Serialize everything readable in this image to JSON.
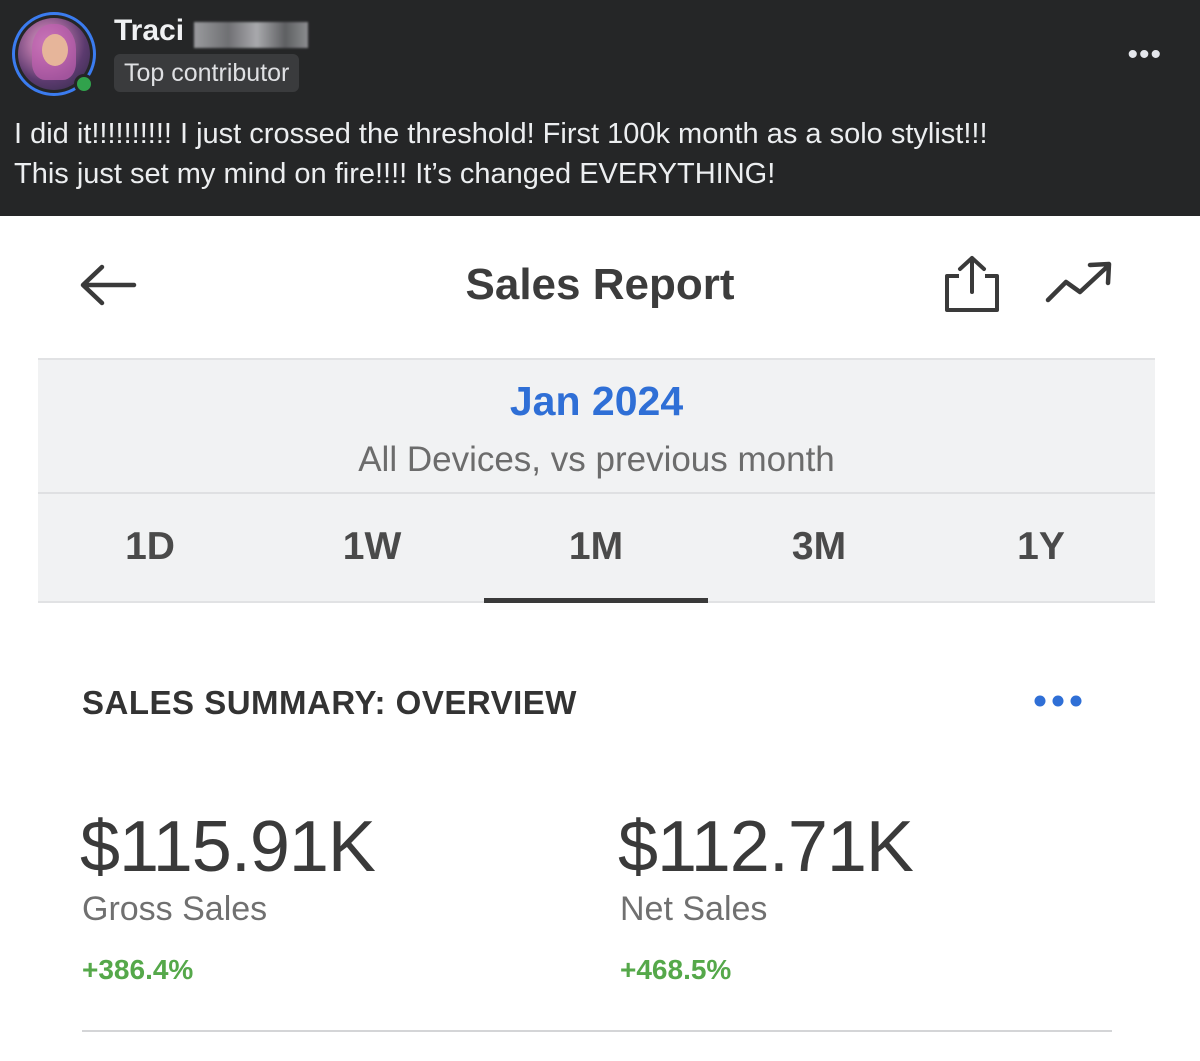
{
  "post": {
    "author_name": "Traci",
    "badge": "Top contributor",
    "more_label": "•••",
    "text_line1": "I did it!!!!!!!!!! I just crossed the threshold!   First 100k month as a solo stylist!!!",
    "text_line2": "This just set my mind on fire!!!! It’s changed EVERYTHING!"
  },
  "report": {
    "title": "Sales Report",
    "icons": [
      "back-arrow-icon",
      "share-icon",
      "trend-icon"
    ],
    "period": {
      "date": "Jan 2024",
      "subtitle": "All Devices, vs previous month"
    },
    "tabs": [
      {
        "label": "1D",
        "active": false
      },
      {
        "label": "1W",
        "active": false
      },
      {
        "label": "1M",
        "active": true
      },
      {
        "label": "3M",
        "active": false
      },
      {
        "label": "1Y",
        "active": false
      }
    ],
    "summary": {
      "title": "SALES SUMMARY: OVERVIEW",
      "gross": {
        "value": "$115.91K",
        "label": "Gross Sales",
        "change": "+386.4%"
      },
      "net": {
        "value": "$112.71K",
        "label": "Net Sales",
        "change": "+468.5%"
      }
    }
  },
  "colors": {
    "post_background": "#252627",
    "accent_blue": "#2f6fd6",
    "positive_green": "#55a84a",
    "online_green": "#31a24c"
  }
}
